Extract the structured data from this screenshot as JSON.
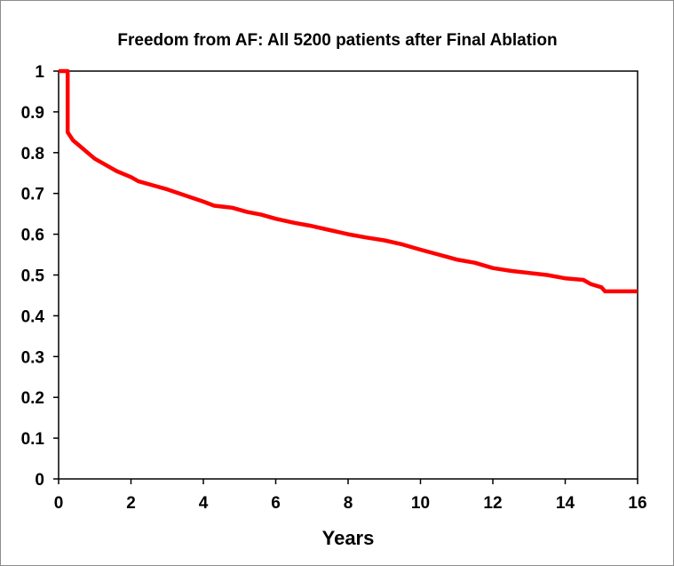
{
  "chart_data": {
    "type": "line",
    "title": "Freedom from AF: All 5200 patients after Final Ablation",
    "xlabel": "Years",
    "ylabel": "",
    "xlim": [
      0,
      16
    ],
    "ylim": [
      0,
      1
    ],
    "x_ticks": [
      0,
      2,
      4,
      6,
      8,
      10,
      12,
      14,
      16
    ],
    "y_ticks": [
      0,
      0.1,
      0.2,
      0.3,
      0.4,
      0.5,
      0.6,
      0.7,
      0.8,
      0.9,
      1
    ],
    "grid": false,
    "series": [
      {
        "name": "Freedom from AF",
        "color": "#ff0000",
        "points": [
          [
            0,
            1
          ],
          [
            0.25,
            1
          ],
          [
            0.25,
            0.85
          ],
          [
            0.4,
            0.83
          ],
          [
            0.6,
            0.815
          ],
          [
            0.8,
            0.8
          ],
          [
            1.0,
            0.785
          ],
          [
            1.3,
            0.77
          ],
          [
            1.6,
            0.755
          ],
          [
            2.0,
            0.74
          ],
          [
            2.2,
            0.73
          ],
          [
            2.6,
            0.72
          ],
          [
            3.0,
            0.71
          ],
          [
            3.5,
            0.695
          ],
          [
            4.0,
            0.68
          ],
          [
            4.3,
            0.67
          ],
          [
            4.8,
            0.665
          ],
          [
            5.2,
            0.655
          ],
          [
            5.6,
            0.648
          ],
          [
            6.0,
            0.638
          ],
          [
            6.5,
            0.628
          ],
          [
            7.0,
            0.62
          ],
          [
            7.5,
            0.61
          ],
          [
            8.0,
            0.6
          ],
          [
            8.5,
            0.592
          ],
          [
            9.0,
            0.585
          ],
          [
            9.5,
            0.575
          ],
          [
            10.0,
            0.562
          ],
          [
            10.5,
            0.55
          ],
          [
            11.0,
            0.538
          ],
          [
            11.5,
            0.53
          ],
          [
            12.0,
            0.517
          ],
          [
            12.5,
            0.51
          ],
          [
            13.0,
            0.505
          ],
          [
            13.5,
            0.5
          ],
          [
            14.0,
            0.492
          ],
          [
            14.5,
            0.488
          ],
          [
            14.7,
            0.478
          ],
          [
            15.0,
            0.47
          ],
          [
            15.1,
            0.46
          ],
          [
            16.0,
            0.46
          ]
        ]
      }
    ]
  }
}
